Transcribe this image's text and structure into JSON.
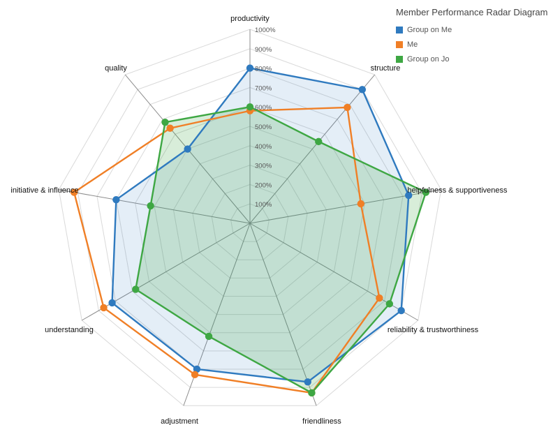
{
  "chart_data": {
    "type": "radar",
    "title": "Member Performance Radar Diagram",
    "axes": [
      "productivity",
      "structure",
      "helpfulness & supportiveness",
      "reliability & trustworthiness",
      "friendliness",
      "adjustment",
      "understanding",
      "initiative & influence",
      "quality"
    ],
    "tick_labels": [
      "100%",
      "200%",
      "300%",
      "400%",
      "500%",
      "600%",
      "700%",
      "800%",
      "900%",
      "1000%"
    ],
    "rlim": [
      0,
      1000
    ],
    "grid": true,
    "legend_position": "top-right",
    "series": [
      {
        "name": "Group on Me",
        "color": "#2f7abf",
        "values": [
          800,
          900,
          830,
          900,
          870,
          800,
          820,
          700,
          500
        ]
      },
      {
        "name": "Me",
        "color": "#f07f26",
        "values": [
          580,
          780,
          580,
          770,
          930,
          830,
          870,
          920,
          640
        ]
      },
      {
        "name": "Group on Jo",
        "color": "#3ea743",
        "values": [
          600,
          550,
          920,
          830,
          930,
          620,
          680,
          520,
          680
        ]
      }
    ]
  }
}
